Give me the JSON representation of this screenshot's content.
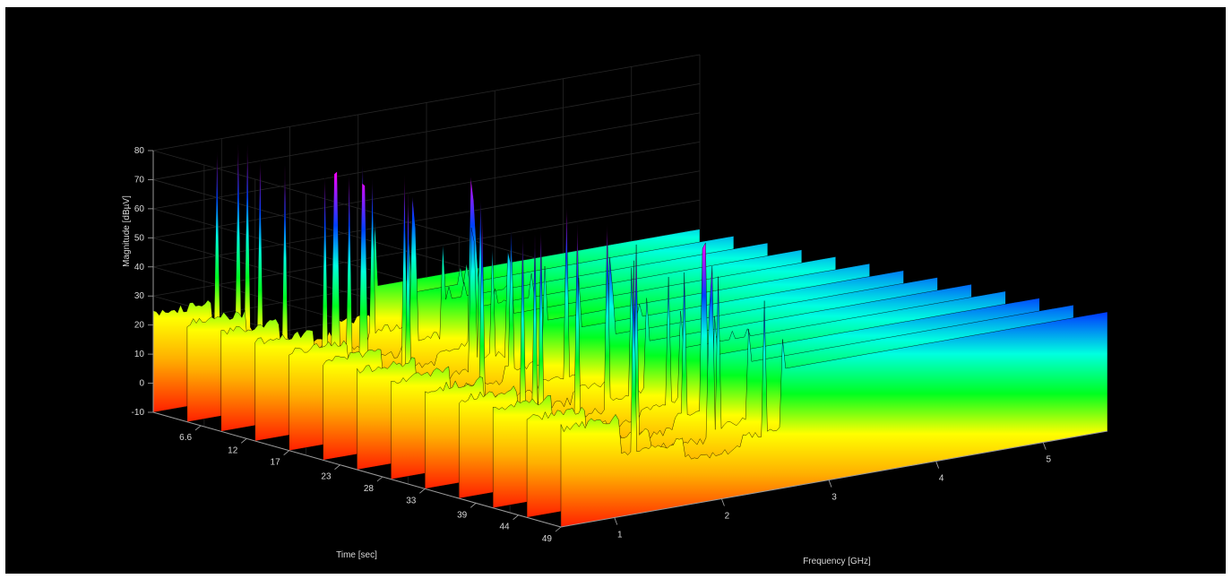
{
  "chart_data": {
    "type": "surface-3d",
    "title": "",
    "xlabel": "Frequency [GHz]",
    "ylabel": "Time [sec]",
    "zlabel": "Magnitude [dBµV]",
    "x_ticks": [
      "1",
      "2",
      "3",
      "4",
      "5"
    ],
    "y_ticks": [
      "6.6",
      "12",
      "17",
      "23",
      "28",
      "33",
      "39",
      "44",
      "49"
    ],
    "z_ticks": [
      "-10",
      "0",
      "10",
      "20",
      "30",
      "40",
      "50",
      "60",
      "70",
      "80"
    ],
    "xlim": [
      0.5,
      5.6
    ],
    "ylim": [
      1,
      49
    ],
    "zlim": [
      -10,
      80
    ],
    "colormap": "jet (red low → magenta high)",
    "background": "#000000",
    "grid": true,
    "features": [
      {
        "name": "broadband plateau",
        "freq_ghz": [
          0.5,
          1.05
        ],
        "magnitude_dbuv": [
          18,
          30
        ]
      },
      {
        "name": "narrow spikes",
        "freq_ghz": [
          1.05,
          1.65
        ],
        "magnitude_dbuv": [
          50,
          80
        ]
      },
      {
        "name": "spike cluster",
        "freq_ghz": [
          2.2,
          2.55
        ],
        "magnitude_dbuv": [
          40,
          72
        ]
      },
      {
        "name": "tall wall",
        "freq_ghz": [
          2.55,
          5.6
        ],
        "magnitude_dbuv": [
          20,
          42
        ]
      },
      {
        "name": "noise floor",
        "freq_ghz": [
          0.5,
          5.6
        ],
        "magnitude_dbuv": [
          -10,
          0
        ]
      }
    ]
  }
}
